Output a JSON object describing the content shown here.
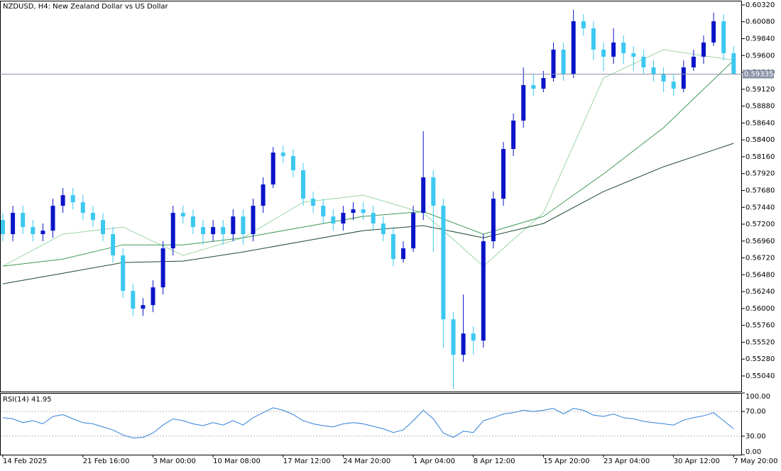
{
  "chart_data": {
    "type": "candlestick",
    "title": "NZDUSD, H4:  New Zealand Dollar vs US Dollar",
    "up_color": "#0a14c8",
    "down_color": "#3cc8f0",
    "categories": [
      "14 Feb 2025",
      null,
      null,
      null,
      null,
      null,
      null,
      null,
      "21 Feb 16:00",
      null,
      null,
      null,
      null,
      null,
      null,
      "3 Mar 00:00",
      null,
      null,
      null,
      null,
      null,
      "10 Mar 08:00",
      null,
      null,
      null,
      null,
      null,
      null,
      "17 Mar 12:00",
      null,
      null,
      null,
      null,
      null,
      "24 Mar 20:00",
      null,
      null,
      null,
      null,
      null,
      null,
      "1 Apr 04:00",
      null,
      null,
      null,
      null,
      null,
      "8 Apr 12:00",
      null,
      null,
      null,
      null,
      null,
      null,
      "15 Apr 20:00",
      null,
      null,
      null,
      null,
      null,
      "23 Apr 04:00",
      null,
      null,
      null,
      null,
      null,
      null,
      "30 Apr 12:00",
      null,
      null,
      null,
      null,
      null,
      "7 May 20:00"
    ],
    "open": [
      0.5726,
      0.57058,
      0.57361,
      0.57159,
      0.57058,
      0.57108,
      0.57462,
      0.57613,
      0.57512,
      0.57361,
      0.5726,
      0.57058,
      0.56755,
      0.5625,
      0.55997,
      0.56048,
      0.56301,
      0.56856,
      0.57361,
      0.5731,
      0.57159,
      0.57058,
      0.57159,
      0.57058,
      0.5731,
      0.57058,
      0.57462,
      0.57765,
      0.58219,
      0.58169,
      0.57967,
      0.57563,
      0.57462,
      0.5731,
      0.57209,
      0.57361,
      0.57411,
      0.57361,
      0.57209,
      0.57058,
      0.56704,
      0.56856,
      0.57361,
      0.57866,
      0.57462,
      0.55846,
      0.55341,
      0.55644,
      0.55543,
      0.56957,
      0.57563,
      0.5827,
      0.58674,
      0.59179,
      0.59128,
      0.5928,
      0.59684,
      0.5933,
      0.60088,
      0.59987,
      0.59684,
      0.59583,
      0.59785,
      0.59633,
      0.59583,
      0.59431,
      0.5933,
      0.59229,
      0.59128,
      0.59431,
      0.59583,
      0.59785,
      0.60088,
      0.59633
    ],
    "high": [
      0.57361,
      0.57462,
      0.57462,
      0.5726,
      0.57209,
      0.57563,
      0.57714,
      0.57714,
      0.57613,
      0.57462,
      0.57361,
      0.57159,
      0.56856,
      0.56351,
      0.56149,
      0.56401,
      0.56957,
      0.57462,
      0.57462,
      0.57411,
      0.5726,
      0.5726,
      0.5726,
      0.57411,
      0.57411,
      0.57563,
      0.57866,
      0.583,
      0.5832,
      0.5827,
      0.58068,
      0.57664,
      0.57563,
      0.57411,
      0.57462,
      0.57512,
      0.57512,
      0.57462,
      0.5731,
      0.57159,
      0.56957,
      0.57462,
      0.58522,
      0.57967,
      0.57563,
      0.55947,
      0.56199,
      0.55745,
      0.57058,
      0.57664,
      0.58371,
      0.58775,
      0.59431,
      0.5933,
      0.59381,
      0.59785,
      0.59785,
      0.6025,
      0.60189,
      0.60088,
      0.59785,
      0.59987,
      0.59886,
      0.59734,
      0.59684,
      0.59532,
      0.59431,
      0.5933,
      0.59532,
      0.59684,
      0.59886,
      0.60209,
      0.60189,
      0.59734
    ],
    "low": [
      0.56957,
      0.56957,
      0.57058,
      0.56957,
      0.56957,
      0.57007,
      0.57361,
      0.57411,
      0.5726,
      0.57159,
      0.56957,
      0.56654,
      0.56149,
      0.55896,
      0.55896,
      0.55947,
      0.56199,
      0.56755,
      0.57209,
      0.57058,
      0.56906,
      0.56957,
      0.56906,
      0.56957,
      0.56906,
      0.56957,
      0.57361,
      0.57714,
      0.58068,
      0.57866,
      0.57462,
      0.57361,
      0.57209,
      0.57108,
      0.57108,
      0.5726,
      0.5726,
      0.57108,
      0.56957,
      0.56603,
      0.56654,
      0.56805,
      0.5726,
      0.56805,
      0.55442,
      0.54856,
      0.5524,
      0.55341,
      0.55442,
      0.56856,
      0.57462,
      0.58169,
      0.58573,
      0.59027,
      0.59078,
      0.59229,
      0.5924,
      0.5928,
      0.59886,
      0.59532,
      0.59381,
      0.59482,
      0.59482,
      0.59381,
      0.5933,
      0.59229,
      0.59078,
      0.59027,
      0.59078,
      0.59381,
      0.59482,
      0.59734,
      0.59532,
      0.5933
    ],
    "close": [
      0.57058,
      0.57361,
      0.57159,
      0.57058,
      0.57108,
      0.57462,
      0.57613,
      0.57512,
      0.57361,
      0.5726,
      0.57058,
      0.56755,
      0.5625,
      0.55997,
      0.56048,
      0.56301,
      0.56856,
      0.57361,
      0.5731,
      0.57159,
      0.57058,
      0.57159,
      0.57058,
      0.5731,
      0.57058,
      0.57462,
      0.57765,
      0.58219,
      0.58169,
      0.57967,
      0.57563,
      0.57462,
      0.5731,
      0.57209,
      0.57361,
      0.57411,
      0.57361,
      0.57209,
      0.57058,
      0.56704,
      0.56856,
      0.57361,
      0.57866,
      0.57462,
      0.55846,
      0.55341,
      0.55644,
      0.55543,
      0.56957,
      0.57563,
      0.5827,
      0.58674,
      0.59179,
      0.59128,
      0.5928,
      0.59684,
      0.5933,
      0.60088,
      0.59987,
      0.59684,
      0.59583,
      0.59785,
      0.59633,
      0.59583,
      0.59431,
      0.5933,
      0.59229,
      0.59128,
      0.59431,
      0.59583,
      0.59785,
      0.60088,
      0.59633,
      0.59335
    ],
    "current_price": 0.59335,
    "ylim": [
      0.54818,
      0.6037
    ],
    "yticks": [
      {
        "value": 0.6032,
        "label": "0.60320"
      },
      {
        "value": 0.6008,
        "label": "0.60080"
      },
      {
        "value": 0.5984,
        "label": "0.59840"
      },
      {
        "value": 0.596,
        "label": "0.59600"
      },
      {
        "value": 0.5936,
        "label": "0.59360"
      },
      {
        "value": 0.5912,
        "label": "0.59120"
      },
      {
        "value": 0.5888,
        "label": "0.58880"
      },
      {
        "value": 0.5864,
        "label": "0.58640"
      },
      {
        "value": 0.584,
        "label": "0.58400"
      },
      {
        "value": 0.5816,
        "label": "0.58160"
      },
      {
        "value": 0.5792,
        "label": "0.57920"
      },
      {
        "value": 0.5768,
        "label": "0.57680"
      },
      {
        "value": 0.5744,
        "label": "0.57440"
      },
      {
        "value": 0.572,
        "label": "0.57200"
      },
      {
        "value": 0.5696,
        "label": "0.56960"
      },
      {
        "value": 0.5672,
        "label": "0.56720"
      },
      {
        "value": 0.5648,
        "label": "0.56480"
      },
      {
        "value": 0.5624,
        "label": "0.56240"
      },
      {
        "value": 0.56,
        "label": "0.56000"
      },
      {
        "value": 0.5576,
        "label": "0.55760"
      },
      {
        "value": 0.5552,
        "label": "0.55520"
      },
      {
        "value": 0.5528,
        "label": "0.55280"
      },
      {
        "value": 0.5504,
        "label": "0.55040"
      }
    ],
    "moving_averages": [
      {
        "color": "#9ad6a8",
        "x": [
          0,
          6,
          12,
          18,
          24,
          30,
          36,
          42,
          48,
          54,
          60,
          66,
          73
        ],
        "values": [
          0.56603,
          0.57058,
          0.57159,
          0.56755,
          0.57007,
          0.57512,
          0.57613,
          0.57361,
          0.56603,
          0.57361,
          0.5928,
          0.59684,
          0.59532
        ]
      },
      {
        "color": "#3f9a55",
        "x": [
          0,
          6,
          12,
          18,
          24,
          30,
          36,
          42,
          48,
          54,
          60,
          66,
          73
        ],
        "values": [
          0.56603,
          0.56704,
          0.56906,
          0.56906,
          0.57007,
          0.57159,
          0.5731,
          0.57381,
          0.57058,
          0.5731,
          0.57916,
          0.58573,
          0.59532
        ]
      },
      {
        "color": "#1f4a2c",
        "x": [
          0,
          6,
          12,
          18,
          24,
          30,
          36,
          42,
          48,
          54,
          60,
          66,
          73
        ],
        "values": [
          0.56351,
          0.56502,
          0.56654,
          0.56674,
          0.56805,
          0.56957,
          0.57108,
          0.57179,
          0.57007,
          0.57209,
          0.57664,
          0.58017,
          0.58351
        ]
      }
    ],
    "rsi": {
      "label": "RSI(14)",
      "color": "#2f7fd8",
      "ylim": [
        0,
        100
      ],
      "yticks": [
        {
          "value": 100,
          "label": "100.00"
        },
        {
          "value": 70,
          "label": "70.00"
        },
        {
          "value": 30,
          "label": "30.00"
        },
        {
          "value": 0,
          "label": "0.00"
        }
      ],
      "levels": [
        70,
        30
      ],
      "values": [
        60,
        58,
        52,
        55,
        50,
        62,
        65,
        58,
        52,
        50,
        45,
        40,
        32,
        27,
        28,
        35,
        48,
        58,
        55,
        50,
        47,
        52,
        48,
        55,
        48,
        60,
        68,
        76,
        72,
        65,
        55,
        50,
        47,
        45,
        50,
        52,
        50,
        46,
        42,
        36,
        40,
        55,
        72,
        58,
        35,
        28,
        38,
        36,
        55,
        60,
        66,
        68,
        72,
        70,
        72,
        75,
        66,
        75,
        72,
        64,
        62,
        66,
        60,
        58,
        54,
        52,
        50,
        48,
        56,
        60,
        63,
        68,
        55,
        41.95
      ]
    }
  }
}
